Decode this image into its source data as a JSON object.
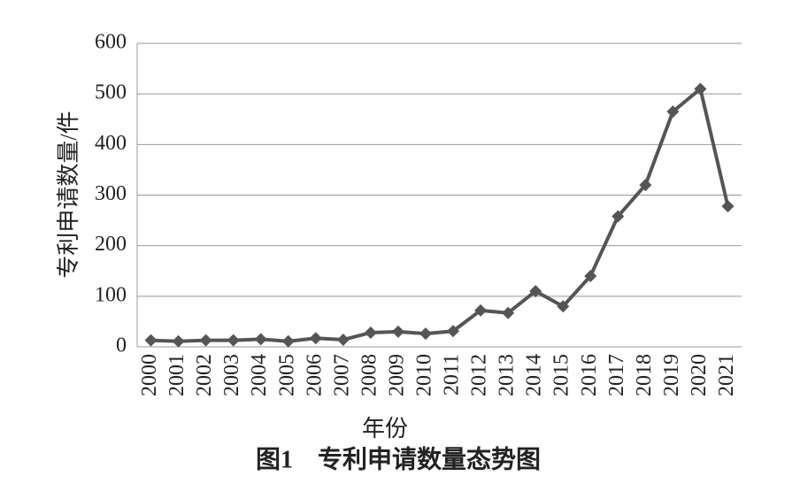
{
  "chart_data": {
    "type": "line",
    "caption": "图1　专利申请数量态势图",
    "x_label": "年份",
    "y_label": "专利申请数量/件",
    "categories": [
      "2000",
      "2001",
      "2002",
      "2003",
      "2004",
      "2005",
      "2006",
      "2007",
      "2008",
      "2009",
      "2010",
      "2011",
      "2012",
      "2013",
      "2014",
      "2015",
      "2016",
      "2017",
      "2018",
      "2019",
      "2020",
      "2021"
    ],
    "values": [
      13,
      11,
      13,
      13,
      15,
      11,
      17,
      14,
      28,
      30,
      26,
      31,
      72,
      67,
      110,
      80,
      140,
      258,
      320,
      465,
      510,
      278
    ],
    "color": "#555555",
    "ylim": [
      0,
      600
    ],
    "yticks": [
      0,
      100,
      200,
      300,
      400,
      500,
      600
    ],
    "grid": true
  }
}
